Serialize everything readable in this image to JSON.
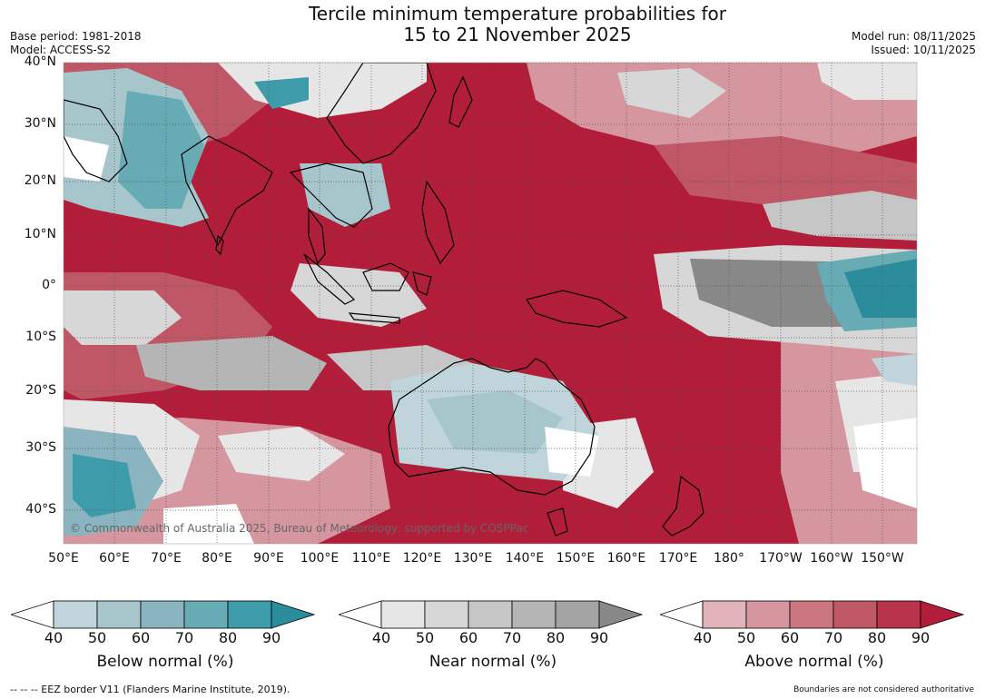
{
  "title": {
    "line1": "Tercile minimum temperature probabilities for",
    "line2": "15 to 21 November 2025"
  },
  "meta": {
    "base_period": "Base period: 1981-2018",
    "model": "Model: ACCESS-S2",
    "model_run": "Model run: 08/11/2025",
    "issued": "Issued: 10/11/2025"
  },
  "lat_labels": [
    "40°N",
    "30°N",
    "20°N",
    "10°N",
    "0°",
    "10°S",
    "20°S",
    "30°S",
    "40°S"
  ],
  "lon_labels": [
    "50°E",
    "60°E",
    "70°E",
    "80°E",
    "90°E",
    "100°E",
    "110°E",
    "120°E",
    "130°E",
    "140°E",
    "150°E",
    "160°E",
    "170°E",
    "180°",
    "170°W",
    "160°W",
    "150°W"
  ],
  "copyright": "© Commonwealth of Australia 2025, Bureau of Meteorology, supported by COSPPac",
  "colorbars": [
    {
      "label": "Below normal (%)",
      "ticks": [
        "40",
        "50",
        "60",
        "70",
        "80",
        "90"
      ],
      "colors": [
        "#ffffff",
        "#bfd5db",
        "#a6c6cc",
        "#8ab4c0",
        "#67abb5",
        "#3e9ba9",
        "#2b8d9c"
      ]
    },
    {
      "label": "Near normal (%)",
      "ticks": [
        "40",
        "50",
        "60",
        "70",
        "80",
        "90"
      ],
      "colors": [
        "#ffffff",
        "#e6e6e6",
        "#d7d7d7",
        "#c6c6c6",
        "#b5b5b5",
        "#a4a4a4",
        "#888888"
      ]
    },
    {
      "label": "Above normal (%)",
      "ticks": [
        "40",
        "50",
        "60",
        "70",
        "80",
        "90"
      ],
      "colors": [
        "#ffffff",
        "#e0b4ba",
        "#d5969f",
        "#cb7680",
        "#c05766",
        "#b8344a",
        "#b21d3a"
      ]
    }
  ],
  "footer": {
    "eez": "--  --  -- EEZ border V11 (Flanders Marine Institute, 2019).",
    "disclaimer": "Boundaries are not considered authoritative"
  },
  "colors": {
    "above90": "#b21d3a",
    "above80": "#c05766",
    "above60": "#d5969f",
    "near": "#c6c6c6",
    "near_dark": "#888888",
    "below": "#67abb5",
    "below_light": "#a6c6cc",
    "land_outline": "#000000"
  }
}
